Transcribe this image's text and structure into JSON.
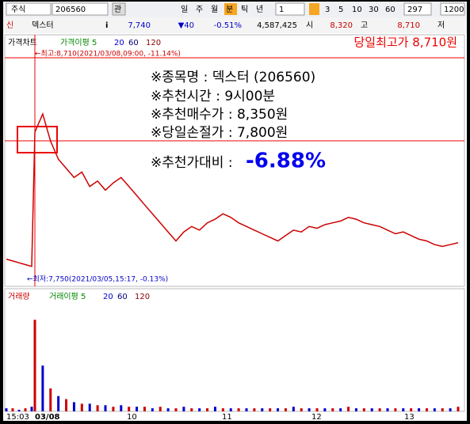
{
  "toolbar": {
    "market": "주식",
    "code": "206560",
    "watch": "관",
    "periods": [
      "일",
      "주",
      "월",
      "분",
      "틱",
      "년"
    ],
    "interval": "1",
    "intervals": [
      "3",
      "5",
      "10",
      "30",
      "60"
    ],
    "count": "297",
    "count2": "1200"
  },
  "quote": {
    "flag": "신",
    "name": "덱스터",
    "info": "i",
    "price": "7,740",
    "change": "▼40",
    "change_rate": "-0.51%",
    "volume": "4,587,425",
    "open_label": "시",
    "open": "8,320",
    "high_label": "고",
    "high": "8,710",
    "low_label": "저"
  },
  "price_chart": {
    "title": "가격차트",
    "ma_label": "가격이평 5",
    "ma": [
      "20",
      "60",
      "120"
    ],
    "headline": "당일최고가 8,710원",
    "high_note": "←최고:8,710(2021/03/08,09:00, -11.14%)",
    "low_note": "←최저:7,750(2021/03/05,15:17, -0.13%)",
    "overlay": [
      "※종목명 : 덱스터 (206560)",
      "※추천시간 : 9시00분",
      "※추천매수가 : 8,350원",
      "※당일손절가 : 7,800원"
    ],
    "ratio_label": "※추천가대비 :",
    "ratio": "-6.88%",
    "close": [
      7800,
      7790,
      7780,
      7770,
      7760,
      8500,
      8600,
      8450,
      8350,
      8300,
      8250,
      8280,
      8200,
      8230,
      8180,
      8220,
      8250,
      8200,
      8150,
      8100,
      8050,
      8000,
      7950,
      7900,
      7950,
      7980,
      7960,
      8000,
      8020,
      8050,
      8030,
      8000,
      7980,
      7960,
      7940,
      7920,
      7900,
      7930,
      7960,
      7950,
      7980,
      7970,
      7990,
      8000,
      8010,
      8030,
      8020,
      8000,
      7990,
      7980,
      7960,
      7940,
      7950,
      7930,
      7910,
      7900,
      7880,
      7870,
      7880,
      7890
    ],
    "ylim": [
      7650,
      9010
    ]
  },
  "volume_chart": {
    "title": "거래량",
    "ma_label": "거래이평 5",
    "ma": [
      "20",
      "60",
      "120"
    ],
    "values": [
      2,
      2,
      1,
      2,
      3,
      60,
      30,
      15,
      10,
      8,
      6,
      5,
      5,
      4,
      4,
      3,
      4,
      3,
      3,
      3,
      2,
      3,
      2,
      2,
      3,
      2,
      2,
      2,
      3,
      2,
      2,
      2,
      2,
      2,
      2,
      2,
      2,
      2,
      3,
      2,
      2,
      2,
      2,
      2,
      2,
      3,
      2,
      2,
      2,
      2,
      2,
      2,
      2,
      2,
      2,
      2,
      2,
      2,
      2,
      3
    ],
    "ylim": [
      0,
      70
    ]
  },
  "x_axis": [
    "15:03",
    "03/08",
    "10",
    "11",
    "12",
    "13"
  ]
}
